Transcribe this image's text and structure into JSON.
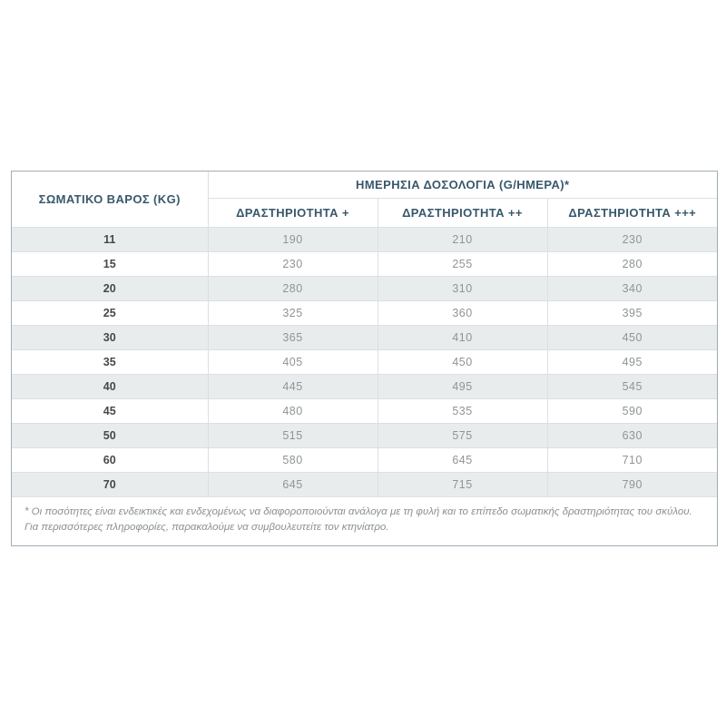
{
  "colors": {
    "outer_border": "#9fadb3",
    "inner_border": "#dde0e0",
    "stripe_bg": "#e9eced",
    "header_text": "#38586b",
    "weight_text": "#45494c",
    "value_text": "#8f9496",
    "footnote_text": "#8b9093"
  },
  "table": {
    "weight_header": "ΣΩΜΑΤΙΚΟ ΒΑΡΟΣ (KG)",
    "dosage_header": "ΗΜΕΡΗΣΙΑ ΔΟΣΟΛΟΓΙΑ (G/ΗΜΕΡΑ)*",
    "activity_headers": [
      "ΔΡΑΣΤΗΡΙΟΤΗΤΑ +",
      "ΔΡΑΣΤΗΡΙΟΤΗΤΑ ++",
      "ΔΡΑΣΤΗΡΙΟΤΗΤΑ +++"
    ],
    "rows": [
      {
        "weight": "11",
        "values": [
          "190",
          "210",
          "230"
        ]
      },
      {
        "weight": "15",
        "values": [
          "230",
          "255",
          "280"
        ]
      },
      {
        "weight": "20",
        "values": [
          "280",
          "310",
          "340"
        ]
      },
      {
        "weight": "25",
        "values": [
          "325",
          "360",
          "395"
        ]
      },
      {
        "weight": "30",
        "values": [
          "365",
          "410",
          "450"
        ]
      },
      {
        "weight": "35",
        "values": [
          "405",
          "450",
          "495"
        ]
      },
      {
        "weight": "40",
        "values": [
          "445",
          "495",
          "545"
        ]
      },
      {
        "weight": "45",
        "values": [
          "480",
          "535",
          "590"
        ]
      },
      {
        "weight": "50",
        "values": [
          "515",
          "575",
          "630"
        ]
      },
      {
        "weight": "60",
        "values": [
          "580",
          "645",
          "710"
        ]
      },
      {
        "weight": "70",
        "values": [
          "645",
          "715",
          "790"
        ]
      }
    ],
    "footnote": [
      "* Οι ποσότητες είναι ενδεικτικές και ενδεχομένως να διαφοροποιούνται ανάλογα με τη φυλή και το επίπεδο σωματικής δραστηριότητας του σκύλου.",
      "Για περισσότερες πληροφορίες, παρακαλούμε να συμβουλευτείτε τον κτηνίατρο."
    ]
  },
  "chart_data": {
    "type": "table",
    "title": "ΗΜΕΡΗΣΙΑ ΔΟΣΟΛΟΓΙΑ (G/ΗΜΕΡΑ)*",
    "columns": [
      "ΣΩΜΑΤΙΚΟ ΒΑΡΟΣ (KG)",
      "ΔΡΑΣΤΗΡΙΟΤΗΤΑ +",
      "ΔΡΑΣΤΗΡΙΟΤΗΤΑ ++",
      "ΔΡΑΣΤΗΡΙΟΤΗΤΑ +++"
    ],
    "rows": [
      [
        11,
        190,
        210,
        230
      ],
      [
        15,
        230,
        255,
        280
      ],
      [
        20,
        280,
        310,
        340
      ],
      [
        25,
        325,
        360,
        395
      ],
      [
        30,
        365,
        410,
        450
      ],
      [
        35,
        405,
        450,
        495
      ],
      [
        40,
        445,
        495,
        545
      ],
      [
        45,
        480,
        535,
        590
      ],
      [
        50,
        515,
        575,
        630
      ],
      [
        60,
        580,
        645,
        710
      ],
      [
        70,
        645,
        715,
        790
      ]
    ],
    "footnotes": [
      "* Οι ποσότητες είναι ενδεικτικές και ενδεχομένως να διαφοροποιούνται ανάλογα με τη φυλή και το επίπεδο σωματικής δραστηριότητας του σκύλου.",
      "Για περισσότερες πληροφορίες, παρακαλούμε να συμβουλευτείτε τον κτηνίατρο."
    ]
  }
}
